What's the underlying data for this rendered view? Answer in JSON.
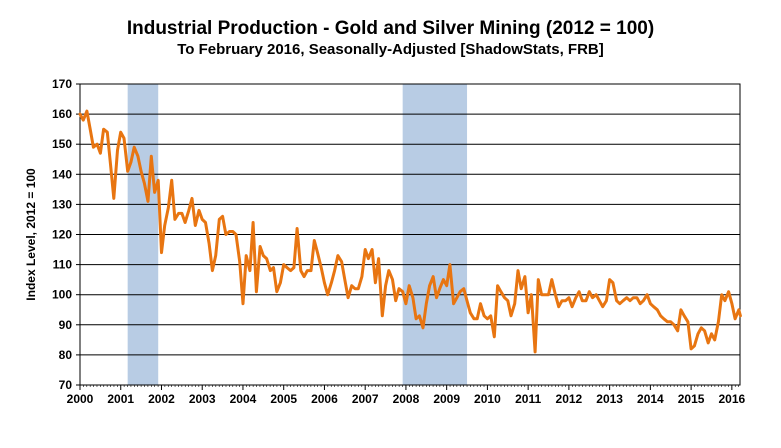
{
  "chart_data": {
    "type": "line",
    "title": "Industrial Production - Gold and Silver Mining (2012 = 100)",
    "subtitle": "To February 2016, Seasonally-Adjusted [ShadowStats, FRB]",
    "xlabel": "",
    "ylabel": "Index Level, 2012 = 100",
    "xlim": [
      2000,
      2016.2
    ],
    "ylim": [
      70,
      170
    ],
    "x_ticks": [
      "2000",
      "2001",
      "2002",
      "2003",
      "2004",
      "2005",
      "2006",
      "2007",
      "2008",
      "2009",
      "2010",
      "2011",
      "2012",
      "2013",
      "2014",
      "2015",
      "2016"
    ],
    "y_ticks": [
      "70",
      "80",
      "90",
      "100",
      "110",
      "120",
      "130",
      "140",
      "150",
      "160",
      "170"
    ],
    "grid": true,
    "colors": {
      "line": "#e87511",
      "recession": "#b8cce4",
      "grid": "#000000"
    },
    "recessions": [
      [
        2001.17,
        2001.92
      ],
      [
        2007.92,
        2009.5
      ]
    ],
    "series": [
      {
        "values": [
          [
            2000.0,
            160
          ],
          [
            2000.08,
            158
          ],
          [
            2000.17,
            161
          ],
          [
            2000.25,
            155
          ],
          [
            2000.33,
            149
          ],
          [
            2000.42,
            150
          ],
          [
            2000.5,
            147
          ],
          [
            2000.58,
            155
          ],
          [
            2000.67,
            154
          ],
          [
            2000.75,
            143
          ],
          [
            2000.83,
            132
          ],
          [
            2000.92,
            148
          ],
          [
            2001.0,
            154
          ],
          [
            2001.08,
            152
          ],
          [
            2001.17,
            141
          ],
          [
            2001.25,
            144
          ],
          [
            2001.33,
            149
          ],
          [
            2001.42,
            146
          ],
          [
            2001.5,
            141
          ],
          [
            2001.58,
            137
          ],
          [
            2001.67,
            131
          ],
          [
            2001.75,
            146
          ],
          [
            2001.83,
            134
          ],
          [
            2001.92,
            138
          ],
          [
            2002.0,
            114
          ],
          [
            2002.08,
            123
          ],
          [
            2002.17,
            129
          ],
          [
            2002.25,
            138
          ],
          [
            2002.33,
            125
          ],
          [
            2002.42,
            127
          ],
          [
            2002.5,
            127
          ],
          [
            2002.58,
            124
          ],
          [
            2002.67,
            128
          ],
          [
            2002.75,
            132
          ],
          [
            2002.83,
            123
          ],
          [
            2002.92,
            128
          ],
          [
            2003.0,
            125
          ],
          [
            2003.08,
            124
          ],
          [
            2003.17,
            117
          ],
          [
            2003.25,
            108
          ],
          [
            2003.33,
            113
          ],
          [
            2003.42,
            125
          ],
          [
            2003.5,
            126
          ],
          [
            2003.58,
            120
          ],
          [
            2003.67,
            121
          ],
          [
            2003.75,
            121
          ],
          [
            2003.83,
            120
          ],
          [
            2003.92,
            111
          ],
          [
            2004.0,
            97
          ],
          [
            2004.08,
            113
          ],
          [
            2004.17,
            108
          ],
          [
            2004.25,
            124
          ],
          [
            2004.33,
            101
          ],
          [
            2004.42,
            116
          ],
          [
            2004.5,
            113
          ],
          [
            2004.58,
            112
          ],
          [
            2004.67,
            108
          ],
          [
            2004.75,
            109
          ],
          [
            2004.83,
            101
          ],
          [
            2004.92,
            104
          ],
          [
            2005.0,
            110
          ],
          [
            2005.08,
            109
          ],
          [
            2005.17,
            108
          ],
          [
            2005.25,
            109
          ],
          [
            2005.33,
            122
          ],
          [
            2005.42,
            108
          ],
          [
            2005.5,
            106
          ],
          [
            2005.58,
            108
          ],
          [
            2005.67,
            108
          ],
          [
            2005.75,
            118
          ],
          [
            2005.83,
            114
          ],
          [
            2005.92,
            109
          ],
          [
            2006.0,
            104
          ],
          [
            2006.08,
            100
          ],
          [
            2006.17,
            104
          ],
          [
            2006.25,
            108
          ],
          [
            2006.33,
            113
          ],
          [
            2006.42,
            111
          ],
          [
            2006.5,
            105
          ],
          [
            2006.58,
            99
          ],
          [
            2006.67,
            103
          ],
          [
            2006.75,
            102
          ],
          [
            2006.83,
            102
          ],
          [
            2006.92,
            106
          ],
          [
            2007.0,
            115
          ],
          [
            2007.08,
            112
          ],
          [
            2007.17,
            115
          ],
          [
            2007.25,
            104
          ],
          [
            2007.33,
            112
          ],
          [
            2007.42,
            93
          ],
          [
            2007.5,
            103
          ],
          [
            2007.58,
            108
          ],
          [
            2007.67,
            105
          ],
          [
            2007.75,
            98
          ],
          [
            2007.83,
            102
          ],
          [
            2007.92,
            101
          ],
          [
            2008.0,
            97
          ],
          [
            2008.08,
            103
          ],
          [
            2008.17,
            99
          ],
          [
            2008.25,
            92
          ],
          [
            2008.33,
            93
          ],
          [
            2008.42,
            89
          ],
          [
            2008.5,
            97
          ],
          [
            2008.58,
            103
          ],
          [
            2008.67,
            106
          ],
          [
            2008.75,
            99
          ],
          [
            2008.83,
            102
          ],
          [
            2008.92,
            105
          ],
          [
            2009.0,
            103
          ],
          [
            2009.08,
            110
          ],
          [
            2009.17,
            97
          ],
          [
            2009.25,
            99
          ],
          [
            2009.33,
            101
          ],
          [
            2009.42,
            102
          ],
          [
            2009.5,
            98
          ],
          [
            2009.58,
            94
          ],
          [
            2009.67,
            92
          ],
          [
            2009.75,
            92
          ],
          [
            2009.83,
            97
          ],
          [
            2009.92,
            93
          ],
          [
            2010.0,
            92
          ],
          [
            2010.08,
            93
          ],
          [
            2010.17,
            86
          ],
          [
            2010.25,
            103
          ],
          [
            2010.33,
            101
          ],
          [
            2010.42,
            99
          ],
          [
            2010.5,
            98
          ],
          [
            2010.58,
            93
          ],
          [
            2010.67,
            97
          ],
          [
            2010.75,
            108
          ],
          [
            2010.83,
            102
          ],
          [
            2010.92,
            106
          ],
          [
            2011.0,
            94
          ],
          [
            2011.08,
            100
          ],
          [
            2011.17,
            81
          ],
          [
            2011.25,
            105
          ],
          [
            2011.33,
            100
          ],
          [
            2011.42,
            100
          ],
          [
            2011.5,
            100
          ],
          [
            2011.58,
            105
          ],
          [
            2011.67,
            100
          ],
          [
            2011.75,
            96
          ],
          [
            2011.83,
            98
          ],
          [
            2011.92,
            98
          ],
          [
            2012.0,
            99
          ],
          [
            2012.08,
            96
          ],
          [
            2012.17,
            99
          ],
          [
            2012.25,
            101
          ],
          [
            2012.33,
            98
          ],
          [
            2012.42,
            98
          ],
          [
            2012.5,
            101
          ],
          [
            2012.58,
            99
          ],
          [
            2012.67,
            100
          ],
          [
            2012.75,
            98
          ],
          [
            2012.83,
            96
          ],
          [
            2012.92,
            98
          ],
          [
            2013.0,
            105
          ],
          [
            2013.08,
            104
          ],
          [
            2013.17,
            98
          ],
          [
            2013.25,
            97
          ],
          [
            2013.33,
            98
          ],
          [
            2013.42,
            99
          ],
          [
            2013.5,
            98
          ],
          [
            2013.58,
            99
          ],
          [
            2013.67,
            99
          ],
          [
            2013.75,
            97
          ],
          [
            2013.83,
            98
          ],
          [
            2013.92,
            100
          ],
          [
            2014.0,
            97
          ],
          [
            2014.08,
            96
          ],
          [
            2014.17,
            95
          ],
          [
            2014.25,
            93
          ],
          [
            2014.33,
            92
          ],
          [
            2014.42,
            91
          ],
          [
            2014.5,
            91
          ],
          [
            2014.58,
            90
          ],
          [
            2014.67,
            88
          ],
          [
            2014.75,
            95
          ],
          [
            2014.83,
            93
          ],
          [
            2014.92,
            91
          ],
          [
            2015.0,
            82
          ],
          [
            2015.08,
            83
          ],
          [
            2015.17,
            87
          ],
          [
            2015.25,
            89
          ],
          [
            2015.33,
            88
          ],
          [
            2015.42,
            84
          ],
          [
            2015.5,
            87
          ],
          [
            2015.58,
            85
          ],
          [
            2015.67,
            91
          ],
          [
            2015.75,
            100
          ],
          [
            2015.83,
            98
          ],
          [
            2015.92,
            101
          ],
          [
            2016.0,
            97
          ],
          [
            2016.08,
            92
          ],
          [
            2016.17,
            95
          ],
          [
            2016.21,
            93
          ]
        ]
      }
    ]
  }
}
